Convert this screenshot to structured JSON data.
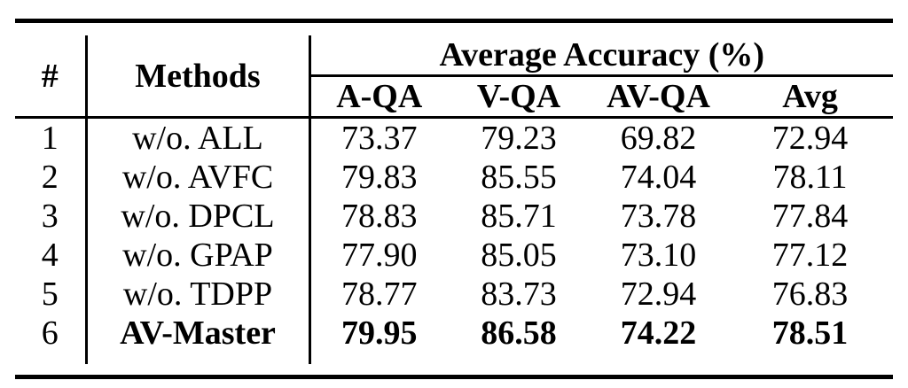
{
  "table": {
    "header": {
      "num_label": "#",
      "methods_label": "Methods",
      "group_label": "Average Accuracy (%)",
      "sub_labels": [
        "A-QA",
        "V-QA",
        "AV-QA",
        "Avg"
      ]
    },
    "rows": [
      {
        "num": "1",
        "method": "w/o. ALL",
        "a_qa": "73.37",
        "v_qa": "79.23",
        "av_qa": "69.82",
        "avg": "72.94"
      },
      {
        "num": "2",
        "method": "w/o. AVFC",
        "a_qa": "79.83",
        "v_qa": "85.55",
        "av_qa": "74.04",
        "avg": "78.11"
      },
      {
        "num": "3",
        "method": "w/o. DPCL",
        "a_qa": "78.83",
        "v_qa": "85.71",
        "av_qa": "73.78",
        "avg": "77.84"
      },
      {
        "num": "4",
        "method": "w/o. GPAP",
        "a_qa": "77.90",
        "v_qa": "85.05",
        "av_qa": "73.10",
        "avg": "77.12"
      },
      {
        "num": "5",
        "method": "w/o. TDPP",
        "a_qa": "78.77",
        "v_qa": "83.73",
        "av_qa": "72.94",
        "avg": "76.83"
      },
      {
        "num": "6",
        "method": "AV-Master",
        "a_qa": "79.95",
        "v_qa": "86.58",
        "av_qa": "74.22",
        "avg": "78.51"
      }
    ],
    "colors": {
      "text": "#000000",
      "background": "#ffffff",
      "rule": "#000000"
    }
  }
}
